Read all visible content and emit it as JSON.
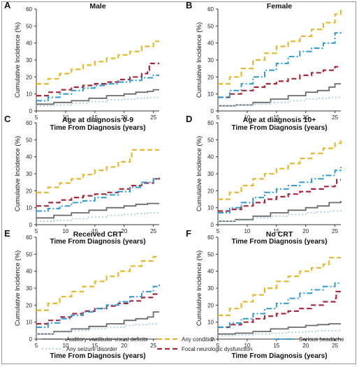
{
  "figure": {
    "legend": [
      {
        "label": "Auditory-vestibular-visual deficits",
        "color": "#6b6b6b",
        "dash": "solid"
      },
      {
        "label": "Any seizure disorder",
        "color": "#a9cbe8",
        "dash": "dot"
      },
      {
        "label": "Any condition",
        "color": "#e6b82e",
        "dash": "dash"
      },
      {
        "label": "Focal neurologic dysfunction",
        "color": "#a8273f",
        "dash": "dash"
      },
      {
        "label": "Serious headache",
        "color": "#2e9bd6",
        "dash": "dashdot"
      }
    ]
  },
  "chart_data": [
    {
      "type": "line",
      "panel": "A",
      "title": "Male",
      "xlabel": "Time From Diagnosis (years)",
      "ylabel": "Cumulative Incidence (%)",
      "xlim": [
        5,
        26
      ],
      "ylim": [
        0,
        60
      ],
      "xticks": [
        5,
        10,
        15,
        20,
        25
      ],
      "yticks": [
        0,
        10,
        20,
        30,
        40,
        50,
        60
      ],
      "series": [
        {
          "name": "Auditory-vestibular-visual deficits",
          "x": [
            5,
            8,
            11,
            14,
            17,
            20,
            22,
            24,
            25,
            26
          ],
          "y": [
            4,
            5,
            6,
            7.5,
            9,
            10,
            11,
            11.5,
            12.5,
            12.5
          ]
        },
        {
          "name": "Any seizure disorder",
          "x": [
            5,
            8,
            11,
            14,
            17,
            20,
            22,
            24,
            26
          ],
          "y": [
            3,
            3.5,
            4.5,
            5.5,
            6.5,
            7,
            7.5,
            8,
            8
          ]
        },
        {
          "name": "Any condition",
          "x": [
            5,
            7,
            9,
            11,
            13,
            15,
            17,
            19,
            21,
            23,
            25,
            26
          ],
          "y": [
            16,
            19,
            22,
            24.5,
            27,
            29,
            31,
            33,
            35,
            38,
            41,
            41
          ]
        },
        {
          "name": "Focal neurologic dysfunction",
          "x": [
            5,
            7,
            9,
            11,
            13,
            15,
            17,
            19,
            21,
            23,
            24,
            24.3,
            26
          ],
          "y": [
            9,
            11,
            12.5,
            14,
            15,
            16,
            17,
            18.5,
            20,
            22,
            24,
            28,
            28
          ]
        },
        {
          "name": "Serious headache",
          "x": [
            5,
            7,
            9,
            11,
            13,
            15,
            17,
            19,
            21,
            23,
            25,
            26
          ],
          "y": [
            6,
            8,
            10,
            12,
            13.5,
            15,
            16,
            17,
            18,
            19.5,
            21,
            21
          ]
        }
      ]
    },
    {
      "type": "line",
      "panel": "B",
      "title": "Female",
      "xlabel": "Time From Diagnosis (years)",
      "ylabel": "Cumulative Incidence (%)",
      "xlim": [
        5,
        26
      ],
      "ylim": [
        0,
        60
      ],
      "xticks": [
        5,
        10,
        15,
        20,
        25
      ],
      "yticks": [
        0,
        10,
        20,
        30,
        40,
        50,
        60
      ],
      "series": [
        {
          "name": "Auditory-vestibular-visual deficits",
          "x": [
            5,
            8,
            11,
            14,
            17,
            20,
            22,
            24,
            25,
            26
          ],
          "y": [
            3,
            3.5,
            5,
            7,
            9,
            11,
            12,
            14,
            16,
            16
          ]
        },
        {
          "name": "Any seizure disorder",
          "x": [
            5,
            8,
            11,
            14,
            17,
            20,
            22,
            24,
            26
          ],
          "y": [
            3,
            3.5,
            4,
            5,
            6,
            7,
            7.5,
            8,
            8
          ]
        },
        {
          "name": "Any condition",
          "x": [
            5,
            7,
            9,
            11,
            13,
            15,
            17,
            19,
            21,
            23,
            25,
            26
          ],
          "y": [
            16,
            20,
            25,
            30,
            34,
            38,
            41,
            44,
            48,
            52,
            57,
            60
          ]
        },
        {
          "name": "Focal neurologic dysfunction",
          "x": [
            5,
            7,
            9,
            11,
            13,
            15,
            17,
            19,
            21,
            23,
            25,
            26
          ],
          "y": [
            8,
            10,
            12,
            14,
            16,
            17.5,
            19,
            21,
            22.5,
            24,
            26,
            26
          ]
        },
        {
          "name": "Serious headache",
          "x": [
            5,
            7,
            9,
            11,
            13,
            15,
            17,
            19,
            21,
            23,
            25,
            26
          ],
          "y": [
            8,
            12,
            16,
            20,
            24,
            28,
            32,
            35,
            37,
            40,
            46,
            47
          ]
        }
      ]
    },
    {
      "type": "line",
      "panel": "C",
      "title": "Age at diagnosis 0-9",
      "xlabel": "Time From Diagnosis (years)",
      "ylabel": "Cumulative Incidence (%)",
      "xlim": [
        5,
        26
      ],
      "ylim": [
        0,
        60
      ],
      "xticks": [
        5,
        10,
        15,
        20,
        25
      ],
      "yticks": [
        0,
        10,
        20,
        30,
        40,
        50,
        60
      ],
      "series": [
        {
          "name": "Auditory-vestibular-visual deficits",
          "x": [
            5,
            8,
            11,
            14,
            17,
            20,
            22,
            24,
            26
          ],
          "y": [
            4,
            5.5,
            7,
            8.5,
            10,
            11,
            12,
            12.5,
            12.5
          ]
        },
        {
          "name": "Any seizure disorder",
          "x": [
            5,
            8,
            11,
            14,
            17,
            20,
            22,
            24,
            26
          ],
          "y": [
            2,
            2.5,
            3.5,
            4.5,
            5.5,
            6,
            6.5,
            7,
            7
          ]
        },
        {
          "name": "Any condition",
          "x": [
            5,
            7,
            9,
            11,
            13,
            15,
            17,
            19,
            21,
            21.3,
            23,
            26
          ],
          "y": [
            19,
            22,
            24.5,
            27,
            29.5,
            32,
            34,
            37,
            40,
            44,
            44,
            44
          ]
        },
        {
          "name": "Focal neurologic dysfunction",
          "x": [
            5,
            7,
            9,
            11,
            13,
            15,
            17,
            19,
            21,
            23,
            25,
            26
          ],
          "y": [
            11,
            13,
            14.5,
            16,
            17,
            18,
            19,
            21,
            23,
            24.5,
            27,
            28
          ]
        },
        {
          "name": "Serious headache",
          "x": [
            5,
            7,
            9,
            11,
            13,
            15,
            17,
            19,
            21,
            23,
            25,
            26
          ],
          "y": [
            8,
            9.5,
            11,
            13,
            14,
            16,
            17.5,
            19.5,
            22,
            25,
            27,
            28
          ]
        }
      ]
    },
    {
      "type": "line",
      "panel": "D",
      "title": "Age at diagnosis 10+",
      "xlabel": "Time From Diagnosis (years)",
      "ylabel": "Cumulative Incidence (%)",
      "xlim": [
        5,
        26
      ],
      "ylim": [
        0,
        60
      ],
      "xticks": [
        5,
        10,
        15,
        20,
        25
      ],
      "yticks": [
        0,
        10,
        20,
        30,
        40,
        50,
        60
      ],
      "series": [
        {
          "name": "Auditory-vestibular-visual deficits",
          "x": [
            5,
            8,
            11,
            14,
            17,
            20,
            22,
            24,
            26
          ],
          "y": [
            2,
            3,
            5,
            7,
            8.5,
            10,
            11,
            13,
            14
          ]
        },
        {
          "name": "Any seizure disorder",
          "x": [
            5,
            8,
            11,
            14,
            17,
            20,
            22,
            24,
            26
          ],
          "y": [
            2,
            2.5,
            4,
            5,
            6,
            7,
            7.5,
            8,
            8.5
          ]
        },
        {
          "name": "Any condition",
          "x": [
            5,
            7,
            9,
            11,
            13,
            15,
            17,
            19,
            21,
            23,
            25,
            26
          ],
          "y": [
            15,
            19,
            23,
            27,
            30,
            33,
            36,
            39,
            42,
            45,
            48,
            50
          ]
        },
        {
          "name": "Focal neurologic dysfunction",
          "x": [
            5,
            7,
            9,
            11,
            13,
            15,
            17,
            19,
            21,
            23,
            25,
            25.3,
            26
          ],
          "y": [
            8,
            9,
            11,
            13,
            15,
            16.5,
            18,
            19.5,
            21,
            22.5,
            24,
            26.5,
            26.5
          ]
        },
        {
          "name": "Serious headache",
          "x": [
            5,
            7,
            9,
            11,
            13,
            15,
            17,
            19,
            21,
            23,
            25,
            26
          ],
          "y": [
            7,
            10,
            13,
            16,
            19,
            21,
            23,
            25,
            27,
            29,
            32,
            34
          ]
        }
      ]
    },
    {
      "type": "line",
      "panel": "E",
      "title": "Received CRT",
      "xlabel": "Time From Diagnosis (years)",
      "ylabel": "Cumulative Incidence (%)",
      "xlim": [
        5,
        26
      ],
      "ylim": [
        0,
        60
      ],
      "xticks": [
        5,
        10,
        15,
        20,
        25
      ],
      "yticks": [
        0,
        10,
        20,
        30,
        40,
        50,
        60
      ],
      "series": [
        {
          "name": "Auditory-vestibular-visual deficits",
          "x": [
            5,
            8,
            11,
            14,
            17,
            20,
            22,
            24,
            25,
            26
          ],
          "y": [
            3,
            4.5,
            6,
            7.5,
            9,
            11,
            12,
            13,
            16,
            16
          ]
        },
        {
          "name": "Any seizure disorder",
          "x": [
            5,
            8,
            11,
            14,
            17,
            20,
            22,
            24,
            26
          ],
          "y": [
            3,
            4,
            5,
            6,
            7,
            8,
            8.5,
            9,
            9
          ]
        },
        {
          "name": "Any condition",
          "x": [
            5,
            7,
            9,
            11,
            13,
            15,
            17,
            19,
            21,
            23,
            25,
            26
          ],
          "y": [
            17,
            21,
            25,
            28,
            31,
            34,
            37,
            40,
            43,
            46,
            48.5,
            48.5
          ]
        },
        {
          "name": "Focal neurologic dysfunction",
          "x": [
            5,
            7,
            9,
            11,
            13,
            15,
            17,
            19,
            21,
            23,
            25,
            26
          ],
          "y": [
            9,
            11,
            13,
            15,
            16.5,
            18,
            19.5,
            21,
            22.5,
            24.5,
            26.5,
            27
          ]
        },
        {
          "name": "Serious headache",
          "x": [
            5,
            7,
            9,
            11,
            13,
            15,
            17,
            19,
            21,
            23,
            25,
            26
          ],
          "y": [
            7,
            9.5,
            12,
            14,
            16,
            18,
            20,
            22,
            25,
            28,
            31,
            33
          ]
        }
      ]
    },
    {
      "type": "line",
      "panel": "F",
      "title": "No CRT",
      "xlabel": "Time From Diagnosis (years)",
      "ylabel": "Cumulative Incidence (%)",
      "xlim": [
        5,
        26
      ],
      "ylim": [
        0,
        60
      ],
      "xticks": [
        5,
        10,
        15,
        20,
        25
      ],
      "yticks": [
        0,
        10,
        20,
        30,
        40,
        50,
        60
      ],
      "series": [
        {
          "name": "Auditory-vestibular-visual deficits",
          "x": [
            5,
            8,
            11,
            14,
            17,
            20,
            22,
            24,
            26
          ],
          "y": [
            3,
            3.5,
            4.5,
            6,
            7,
            8,
            8.5,
            9,
            9
          ]
        },
        {
          "name": "Any seizure disorder",
          "x": [
            5,
            8,
            11,
            14,
            17,
            20,
            22,
            24,
            26
          ],
          "y": [
            2,
            2.5,
            3,
            3.5,
            4,
            4.5,
            5,
            5,
            5
          ]
        },
        {
          "name": "Any condition",
          "x": [
            5,
            7,
            9,
            11,
            13,
            15,
            17,
            19,
            21,
            23,
            24,
            26
          ],
          "y": [
            14,
            18,
            22,
            26,
            30,
            34,
            37,
            40,
            42,
            44,
            48,
            48
          ]
        },
        {
          "name": "Focal neurologic dysfunction",
          "x": [
            5,
            7,
            9,
            11,
            13,
            15,
            17,
            19,
            21,
            23,
            25,
            25.2,
            26
          ],
          "y": [
            7,
            8.5,
            10,
            12,
            13.5,
            15,
            16.5,
            18,
            20,
            22,
            24,
            28,
            28
          ]
        },
        {
          "name": "Serious headache",
          "x": [
            5,
            7,
            9,
            11,
            13,
            15,
            17,
            19,
            21,
            23,
            25,
            26
          ],
          "y": [
            7,
            9.5,
            12,
            15,
            18,
            21,
            24,
            27,
            29,
            31,
            33,
            33
          ]
        }
      ]
    }
  ],
  "panel_letters": [
    "A",
    "B",
    "C",
    "D",
    "E",
    "F"
  ]
}
